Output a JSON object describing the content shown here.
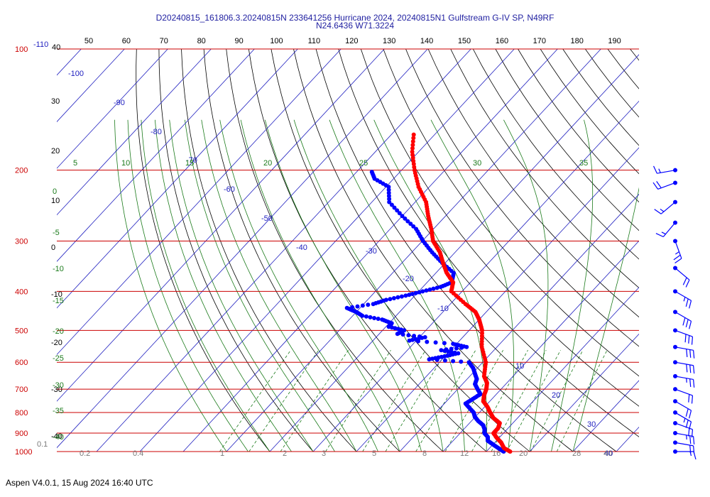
{
  "title": {
    "line1": "D20240815_161806.3.20240815N 233641256 Hurricane 2024, 20240815N1 Gulfstream G-IV SP, N49RF",
    "line2": "N24.6436 W71.3224"
  },
  "footer": "Aspen V4.0.1, 15 Aug 2024  16:40 UTC",
  "colors": {
    "isobar": "#cc0000",
    "temperature": "#ff0000",
    "dewpoint": "#0000ff",
    "isotherm": "#2020c0",
    "dry_adiabat": "#000000",
    "moist_adiabat": "#1a7a1a",
    "mixing_ratio": "#1a7a1a",
    "wind": "#0000ff"
  },
  "chart_data": {
    "type": "skew-t",
    "pressure_levels": [
      "100",
      "200",
      "300",
      "400",
      "500",
      "600",
      "700",
      "800",
      "900",
      "1000"
    ],
    "pressure_range_hPa": [
      100,
      1000
    ],
    "temperature_range_C": [
      -110,
      40
    ],
    "top_axis_ticks": [
      "50",
      "60",
      "70",
      "80",
      "90",
      "100",
      "110",
      "120",
      "130",
      "140",
      "150",
      "160",
      "170",
      "180",
      "190"
    ],
    "top_corner_labels": [
      "-110",
      "40"
    ],
    "left_secondary_labels": [
      "30",
      "20",
      "10",
      "0",
      "-10",
      "-20",
      "-30",
      "-40"
    ],
    "isotherm_labels": [
      "-100",
      "-90",
      "-80",
      "-70",
      "-60",
      "-50",
      "-40",
      "-30",
      "-20",
      "-10",
      "10",
      "20",
      "30",
      "40"
    ],
    "moist_adiabat_top_labels": [
      "5",
      "10",
      "15",
      "20",
      "25",
      "30",
      "35"
    ],
    "moist_adiabat_left_labels": [
      "0",
      "-5",
      "-10",
      "-15",
      "-20",
      "-25",
      "-30",
      "-35",
      "-40"
    ],
    "mixing_ratio_labels": [
      "0.1",
      "0.2",
      "0.4",
      "1",
      "2",
      "3",
      "5",
      "8",
      "12",
      "16",
      "20",
      "28",
      "40"
    ],
    "temperature": {
      "p": [
        1000,
        980,
        950,
        925,
        900,
        875,
        850,
        825,
        800,
        775,
        750,
        725,
        700,
        675,
        650,
        600,
        550,
        500,
        470,
        450,
        430,
        400,
        380,
        360,
        340,
        320,
        300,
        280,
        260,
        240,
        220,
        200,
        180,
        160
      ],
      "t": [
        25.5,
        23.3,
        21.5,
        19.5,
        17.7,
        17.7,
        17.0,
        14.4,
        12.5,
        10.7,
        8.5,
        7.4,
        6.6,
        5.4,
        3.3,
        0.7,
        -3.5,
        -7.0,
        -10.0,
        -12.5,
        -16.5,
        -22.5,
        -24.0,
        -27.5,
        -30.5,
        -33.5,
        -37.5,
        -40.5,
        -44.0,
        -47.5,
        -52.5,
        -57.0,
        -61.5,
        -65.5
      ]
    },
    "dewpoint": {
      "p": [
        1000,
        980,
        960,
        940,
        920,
        900,
        880,
        860,
        840,
        820,
        800,
        780,
        760,
        740,
        720,
        700,
        680,
        660,
        640,
        620,
        600,
        590,
        580,
        570,
        560,
        550,
        540,
        530,
        520,
        510,
        500,
        490,
        480,
        470,
        460,
        450,
        440,
        430,
        420,
        410,
        400,
        390,
        380,
        360,
        340,
        320,
        300,
        280,
        260,
        240,
        220,
        210,
        200
      ],
      "td": [
        24.0,
        22.0,
        20.0,
        18.0,
        17.2,
        15.6,
        14.8,
        13.6,
        11.6,
        9.9,
        8.7,
        6.8,
        4.9,
        5.6,
        6.3,
        4.6,
        2.9,
        2.2,
        0.6,
        -1.0,
        -3.2,
        -13.0,
        -10.1,
        -7.6,
        -12.2,
        -7.0,
        -10.8,
        -21.6,
        -18.7,
        -25.8,
        -25.0,
        -29.3,
        -29.4,
        -32.4,
        -37.8,
        -40.0,
        -43.0,
        -37.8,
        -35.7,
        -32.1,
        -29.1,
        -25.9,
        -24.3,
        -25.9,
        -30.7,
        -35.3,
        -39.8,
        -44.0,
        -50.0,
        -56.0,
        -59.4,
        -64.4,
        -67.0
      ]
    },
    "wind_barbs": [
      {
        "p": 1000,
        "dir": 90,
        "spd": 15
      },
      {
        "p": 950,
        "dir": 100,
        "spd": 20
      },
      {
        "p": 900,
        "dir": 100,
        "spd": 25
      },
      {
        "p": 850,
        "dir": 110,
        "spd": 20
      },
      {
        "p": 800,
        "dir": 120,
        "spd": 25
      },
      {
        "p": 750,
        "dir": 120,
        "spd": 20
      },
      {
        "p": 700,
        "dir": 110,
        "spd": 20
      },
      {
        "p": 650,
        "dir": 100,
        "spd": 25
      },
      {
        "p": 600,
        "dir": 100,
        "spd": 30
      },
      {
        "p": 550,
        "dir": 100,
        "spd": 30
      },
      {
        "p": 500,
        "dir": 110,
        "spd": 30
      },
      {
        "p": 450,
        "dir": 120,
        "spd": 30
      },
      {
        "p": 400,
        "dir": 120,
        "spd": 25
      },
      {
        "p": 350,
        "dir": 130,
        "spd": 20
      },
      {
        "p": 300,
        "dir": 160,
        "spd": 25
      },
      {
        "p": 270,
        "dir": 220,
        "spd": 15
      },
      {
        "p": 240,
        "dir": 230,
        "spd": 15
      },
      {
        "p": 215,
        "dir": 250,
        "spd": 20
      },
      {
        "p": 200,
        "dir": 260,
        "spd": 15
      }
    ]
  }
}
